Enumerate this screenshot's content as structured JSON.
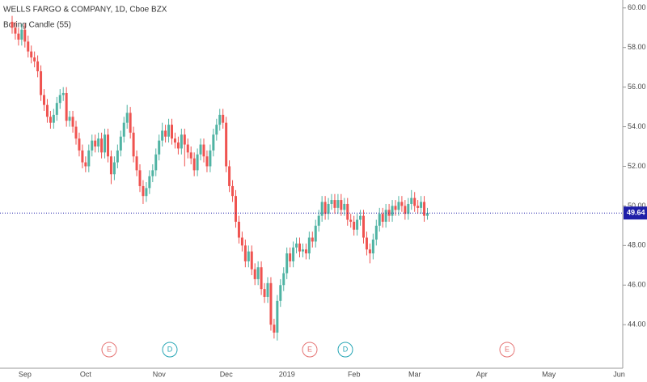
{
  "chart_data": {
    "type": "candlestick",
    "title": "WELLS FARGO & COMPANY, 1D, Cboe BZX",
    "indicator": "Boring Candle (55)",
    "up_color": "#4fb3a3",
    "down_color": "#ef5350",
    "last_price_color": "#1f1fa8",
    "ylim": [
      41.8,
      60.4
    ],
    "yticks": [
      {
        "value": 44,
        "label": "44.00"
      },
      {
        "value": 46,
        "label": "46.00"
      },
      {
        "value": 48,
        "label": "48.00"
      },
      {
        "value": 50,
        "label": "50.00"
      },
      {
        "value": 52,
        "label": "52.00"
      },
      {
        "value": 54,
        "label": "54.00"
      },
      {
        "value": 56,
        "label": "56.00"
      },
      {
        "value": 58,
        "label": "58.00"
      },
      {
        "value": 60,
        "label": "60.00"
      }
    ],
    "last_price": 49.64,
    "events": [
      "E",
      "D",
      "E",
      "D",
      "E"
    ],
    "categories": [
      null,
      null,
      null,
      "Sep",
      null,
      null,
      null,
      null,
      null,
      null,
      null,
      null,
      null,
      null,
      null,
      null,
      null,
      null,
      null,
      null,
      null,
      null,
      "Oct",
      null,
      null,
      null,
      null,
      null,
      null,
      null,
      null,
      null,
      null,
      null,
      null,
      null,
      null,
      null,
      null,
      null,
      null,
      null,
      null,
      null,
      null,
      "Nov",
      null,
      null,
      null,
      null,
      null,
      null,
      null,
      null,
      null,
      null,
      null,
      null,
      null,
      null,
      null,
      null,
      null,
      null,
      null,
      null,
      "Dec",
      null,
      null,
      null,
      null,
      null,
      null,
      null,
      null,
      null,
      null,
      null,
      null,
      null,
      null,
      null,
      null,
      null,
      null,
      "2019",
      null,
      null,
      null,
      null,
      null,
      null,
      null,
      null,
      null,
      null,
      null,
      null,
      null,
      null,
      null,
      null,
      null,
      null,
      null,
      null,
      "Feb",
      null,
      null,
      null,
      null,
      null,
      null,
      null,
      null,
      null,
      null,
      null,
      null,
      null,
      null,
      null,
      null,
      null,
      null,
      "Mar",
      null,
      null,
      null,
      null,
      null,
      null,
      null,
      null,
      null,
      null,
      null,
      null,
      null,
      null,
      null,
      null,
      null,
      null,
      null,
      null,
      "Apr",
      null,
      null,
      null,
      null,
      null,
      null,
      null,
      null,
      null,
      null,
      null,
      null,
      null,
      null,
      null,
      null,
      null,
      null,
      null,
      null,
      "May",
      null,
      null,
      null,
      null,
      null,
      null,
      null,
      null,
      null,
      null,
      null,
      null,
      null,
      null,
      null,
      null,
      null,
      null,
      null,
      null,
      null,
      "Jun",
      null
    ],
    "open": [
      59.3,
      59.0,
      58.7,
      58.4,
      58.9,
      58.3,
      57.8,
      57.5,
      57.3,
      56.8,
      55.6,
      55.1,
      54.5,
      54.2,
      54.6,
      55.2,
      55.6,
      55.7,
      54.3,
      54.5,
      54.0,
      53.4,
      52.8,
      52.2,
      52.0,
      52.8,
      53.3,
      53.0,
      53.4,
      52.7,
      53.6,
      52.5,
      51.6,
      52.2,
      52.8,
      53.5,
      54.2,
      54.7,
      53.7,
      52.5,
      51.8,
      51.0,
      50.5,
      50.9,
      51.5,
      51.8,
      52.6,
      53.3,
      53.8,
      53.5,
      54.1,
      53.4,
      53.2,
      52.9,
      53.6,
      53.1,
      52.7,
      52.4,
      51.8,
      52.6,
      53.1,
      52.5,
      52.0,
      52.8,
      53.6,
      54.1,
      54.6,
      54.2,
      52.0,
      51.0,
      50.5,
      49.2,
      48.4,
      48.0,
      47.2,
      47.7,
      46.8,
      46.3,
      46.9,
      45.8,
      45.4,
      46.1,
      44.0,
      43.6,
      45.2,
      46.0,
      46.6,
      47.6,
      47.2,
      47.9,
      48.1,
      47.7,
      47.8,
      47.6,
      48.4,
      48.2,
      49.0,
      49.5,
      50.2,
      49.6,
      50.1,
      50.3,
      49.9,
      50.3,
      49.8,
      50.1,
      49.3,
      49.2,
      48.8,
      49.3,
      49.5,
      48.4,
      47.8,
      47.6,
      48.3,
      49.0,
      49.6,
      49.2,
      49.8,
      49.5,
      50.0,
      49.8,
      50.2,
      50.0,
      49.6,
      50.1,
      50.4,
      50.0,
      49.9,
      50.2,
      49.5,
      null,
      null,
      null,
      null,
      null,
      null,
      null,
      null,
      null,
      null,
      null,
      null,
      null,
      null,
      null,
      null,
      null,
      null,
      null,
      null,
      null,
      null,
      null,
      null,
      null,
      null,
      null,
      null,
      null,
      null,
      null,
      null,
      null,
      null,
      null,
      null,
      null,
      null,
      null,
      null,
      null,
      null,
      null,
      null,
      null,
      null,
      null,
      null,
      null,
      null,
      null,
      null,
      null,
      null,
      null,
      null,
      null,
      null,
      null,
      null
    ],
    "high": [
      59.6,
      59.3,
      59.0,
      59.2,
      59.2,
      58.6,
      58.1,
      57.8,
      57.6,
      57.1,
      55.9,
      55.4,
      54.8,
      54.9,
      55.5,
      55.9,
      56.0,
      56.0,
      54.8,
      54.8,
      54.3,
      53.7,
      53.1,
      52.5,
      53.1,
      53.6,
      53.6,
      53.7,
      53.7,
      53.9,
      53.9,
      52.8,
      52.5,
      53.1,
      53.8,
      54.5,
      55.1,
      55.0,
      54.0,
      52.8,
      52.1,
      51.3,
      51.2,
      51.8,
      52.1,
      52.9,
      53.6,
      54.2,
      54.1,
      54.4,
      54.4,
      53.7,
      53.5,
      53.9,
      53.9,
      53.4,
      53.0,
      52.7,
      52.9,
      53.4,
      53.4,
      52.8,
      53.1,
      53.9,
      54.4,
      54.9,
      54.9,
      54.5,
      52.3,
      51.3,
      50.8,
      49.5,
      48.7,
      48.3,
      48.0,
      48.0,
      47.1,
      47.2,
      47.2,
      46.1,
      46.4,
      46.4,
      44.3,
      45.5,
      46.3,
      46.9,
      47.9,
      47.9,
      48.2,
      48.4,
      48.4,
      48.1,
      48.1,
      48.7,
      48.7,
      49.3,
      49.8,
      50.5,
      50.5,
      50.4,
      50.6,
      50.6,
      50.6,
      50.6,
      50.4,
      50.4,
      49.6,
      49.5,
      49.6,
      49.8,
      49.8,
      48.7,
      48.1,
      48.6,
      49.3,
      49.9,
      49.9,
      50.1,
      50.1,
      50.3,
      50.3,
      50.5,
      50.5,
      50.3,
      50.4,
      50.8,
      50.7,
      50.3,
      50.5,
      50.5,
      49.9,
      null,
      null,
      null,
      null,
      null,
      null,
      null,
      null,
      null,
      null,
      null,
      null,
      null,
      null,
      null,
      null,
      null,
      null,
      null,
      null,
      null,
      null,
      null,
      null,
      null,
      null,
      null,
      null,
      null,
      null,
      null,
      null,
      null,
      null,
      null,
      null,
      null,
      null,
      null,
      null,
      null,
      null,
      null,
      null,
      null,
      null,
      null,
      null,
      null,
      null,
      null,
      null,
      null,
      null,
      null,
      null,
      null,
      null,
      null,
      null
    ],
    "low": [
      58.7,
      58.4,
      58.1,
      58.1,
      58.0,
      57.5,
      57.2,
      57.0,
      56.5,
      55.3,
      54.8,
      54.2,
      53.9,
      53.9,
      54.3,
      54.9,
      55.3,
      54.0,
      54.0,
      53.7,
      53.1,
      52.5,
      51.9,
      51.7,
      51.7,
      52.5,
      52.7,
      52.7,
      52.4,
      52.4,
      52.2,
      51.1,
      51.3,
      51.9,
      52.5,
      53.2,
      53.9,
      53.4,
      52.2,
      51.5,
      50.7,
      50.1,
      50.2,
      50.6,
      51.2,
      51.5,
      52.3,
      53.0,
      53.2,
      53.2,
      53.1,
      52.9,
      52.6,
      52.6,
      52.0,
      52.4,
      52.1,
      51.5,
      51.5,
      52.3,
      52.2,
      51.7,
      51.7,
      52.5,
      53.3,
      53.8,
      53.9,
      51.7,
      50.7,
      50.2,
      48.9,
      48.1,
      47.7,
      46.9,
      46.9,
      46.5,
      46.0,
      46.0,
      45.5,
      45.1,
      45.1,
      43.7,
      43.3,
      43.2,
      44.9,
      45.7,
      46.3,
      46.9,
      46.9,
      47.6,
      47.4,
      47.4,
      47.3,
      47.3,
      47.9,
      47.9,
      48.7,
      49.2,
      49.3,
      49.3,
      49.8,
      49.6,
      49.6,
      49.5,
      49.5,
      49.0,
      48.9,
      48.5,
      48.5,
      49.0,
      48.1,
      47.5,
      47.1,
      47.3,
      48.0,
      48.7,
      48.9,
      48.9,
      49.2,
      49.2,
      49.5,
      49.5,
      49.7,
      49.3,
      49.3,
      49.8,
      49.7,
      49.6,
      49.6,
      49.2,
      49.3,
      null,
      null,
      null,
      null,
      null,
      null,
      null,
      null,
      null,
      null,
      null,
      null,
      null,
      null,
      null,
      null,
      null,
      null,
      null,
      null,
      null,
      null,
      null,
      null,
      null,
      null,
      null,
      null,
      null,
      null,
      null,
      null,
      null,
      null,
      null,
      null,
      null,
      null,
      null,
      null,
      null,
      null,
      null,
      null,
      null,
      null,
      null,
      null,
      null,
      null,
      null,
      null,
      null,
      null,
      null,
      null,
      null,
      null,
      null,
      null
    ],
    "close": [
      59.0,
      58.7,
      58.4,
      58.9,
      58.3,
      57.8,
      57.5,
      57.3,
      56.8,
      55.6,
      55.1,
      54.5,
      54.2,
      54.6,
      55.2,
      55.6,
      55.7,
      54.3,
      54.5,
      54.0,
      53.4,
      52.8,
      52.2,
      52.0,
      52.8,
      53.3,
      53.0,
      53.4,
      52.7,
      53.6,
      52.5,
      51.6,
      52.2,
      52.8,
      53.5,
      54.2,
      54.7,
      53.7,
      52.5,
      51.8,
      51.0,
      50.5,
      50.9,
      51.5,
      51.8,
      52.6,
      53.3,
      53.8,
      53.5,
      54.1,
      53.4,
      53.2,
      52.9,
      53.6,
      53.1,
      52.7,
      52.4,
      51.8,
      52.6,
      53.1,
      52.5,
      52.0,
      52.8,
      53.6,
      54.1,
      54.6,
      54.2,
      52.0,
      51.0,
      50.5,
      49.2,
      48.4,
      48.0,
      47.2,
      47.7,
      46.8,
      46.3,
      46.9,
      45.8,
      45.4,
      46.1,
      44.0,
      43.6,
      45.2,
      46.0,
      46.6,
      47.6,
      47.2,
      47.9,
      48.1,
      47.7,
      47.8,
      47.6,
      48.4,
      48.2,
      49.0,
      49.5,
      50.2,
      49.6,
      50.1,
      50.3,
      49.9,
      50.3,
      49.8,
      50.1,
      49.3,
      49.2,
      48.8,
      49.3,
      49.5,
      48.4,
      47.8,
      47.6,
      48.3,
      49.0,
      49.6,
      49.2,
      49.8,
      49.5,
      50.0,
      49.8,
      50.2,
      50.0,
      49.6,
      50.1,
      50.4,
      50.0,
      49.9,
      50.2,
      49.5,
      49.64,
      null,
      null,
      null,
      null,
      null,
      null,
      null,
      null,
      null,
      null,
      null,
      null,
      null,
      null,
      null,
      null,
      null,
      null,
      null,
      null,
      null,
      null,
      null,
      null,
      null,
      null,
      null,
      null,
      null,
      null,
      null,
      null,
      null,
      null,
      null,
      null,
      null,
      null,
      null,
      null,
      null,
      null,
      null,
      null,
      null,
      null,
      null,
      null,
      null,
      null,
      null,
      null,
      null,
      null,
      null,
      null,
      null,
      null,
      null,
      null
    ]
  }
}
